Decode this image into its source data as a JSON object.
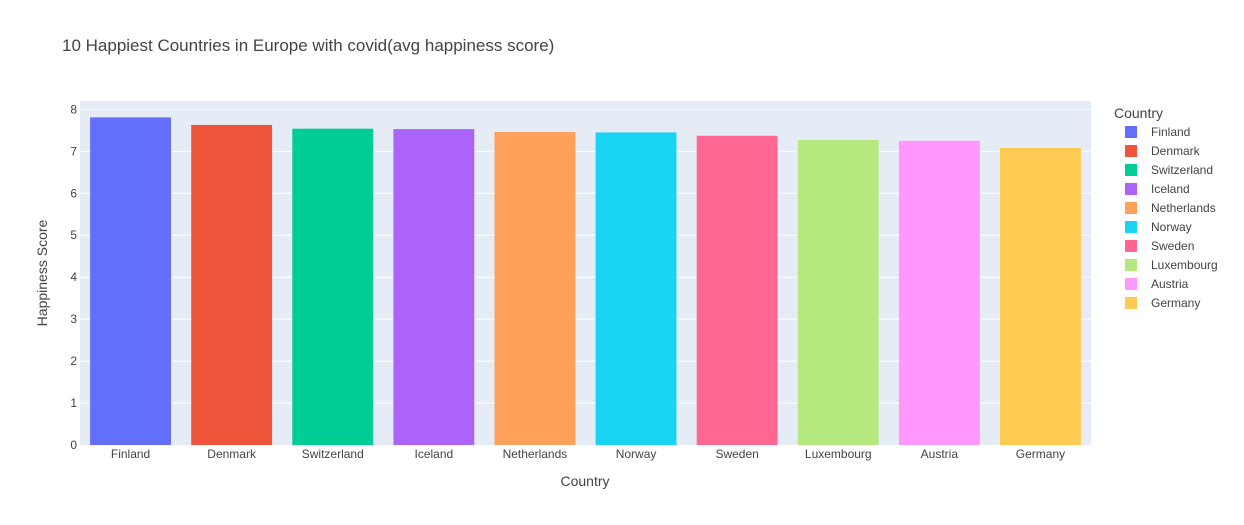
{
  "chart_data": {
    "type": "bar",
    "title": "10 Happiest Countries in Europe with covid(avg happiness score)",
    "xlabel": "Country",
    "ylabel": "Happiness Score",
    "ylim": [
      0,
      8.2
    ],
    "yticks": [
      0,
      1,
      2,
      3,
      4,
      5,
      6,
      7,
      8
    ],
    "grid": true,
    "legend": {
      "title": "Country",
      "placement": "right"
    },
    "categories": [
      "Finland",
      "Denmark",
      "Switzerland",
      "Iceland",
      "Netherlands",
      "Norway",
      "Sweden",
      "Luxembourg",
      "Austria",
      "Germany"
    ],
    "values": [
      7.81,
      7.63,
      7.54,
      7.53,
      7.46,
      7.45,
      7.37,
      7.27,
      7.25,
      7.08
    ],
    "colors": [
      "#636efa",
      "#ef553b",
      "#00cc96",
      "#ab63fa",
      "#ffa15a",
      "#19d3f3",
      "#ff6692",
      "#b6e880",
      "#ff97ff",
      "#fecb52"
    ],
    "plot_bg": "#e5ecf6"
  }
}
